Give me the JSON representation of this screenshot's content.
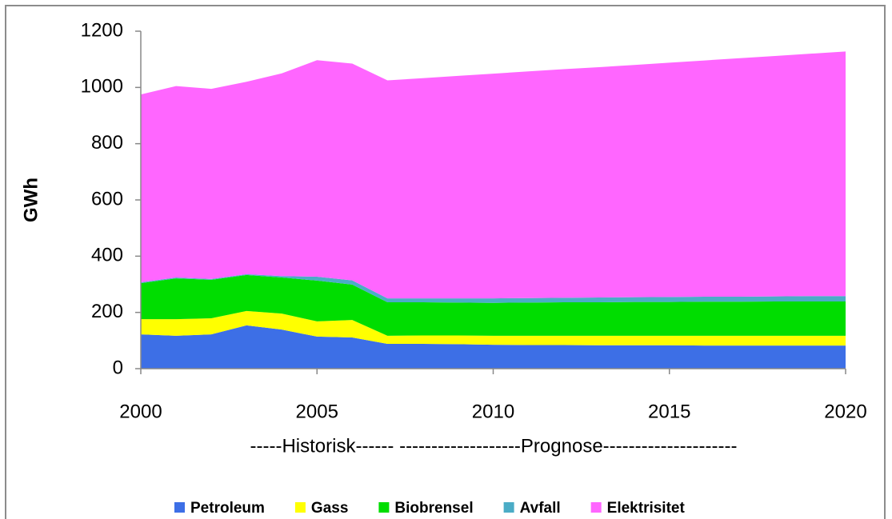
{
  "chart_data": {
    "type": "stacked-area",
    "y_label": "GWh",
    "annotation": "-----Historisk------ -------------------Prognose---------------------",
    "x": [
      2000,
      2001,
      2002,
      2003,
      2004,
      2005,
      2006,
      2007,
      2008,
      2009,
      2010,
      2011,
      2012,
      2013,
      2014,
      2015,
      2016,
      2017,
      2018,
      2019,
      2020
    ],
    "xlim": [
      2000,
      2020
    ],
    "xticks": [
      2000,
      2005,
      2010,
      2015,
      2020
    ],
    "ylim": [
      0,
      1200
    ],
    "yticks": [
      0,
      200,
      400,
      600,
      800,
      1000,
      1200
    ],
    "legend": "bottom",
    "series": [
      {
        "name": "Petroleum",
        "color": "#3d6fe6",
        "values": [
          122,
          117,
          122,
          154,
          139,
          114,
          111,
          88,
          88,
          87,
          85,
          84,
          84,
          83,
          83,
          83,
          82,
          82,
          82,
          82,
          82
        ]
      },
      {
        "name": "Gass",
        "color": "#ffff00",
        "values": [
          54,
          59,
          57,
          51,
          57,
          54,
          62,
          29,
          30,
          31,
          32,
          33,
          33,
          34,
          34,
          34,
          35,
          35,
          35,
          35,
          35
        ]
      },
      {
        "name": "Biobrensel",
        "color": "#00dd00",
        "values": [
          128,
          145,
          137,
          128,
          128,
          145,
          126,
          119,
          118,
          117,
          117,
          118,
          119,
          119,
          120,
          120,
          121,
          121,
          122,
          122,
          122
        ]
      },
      {
        "name": "Avfall",
        "color": "#4bacc6",
        "values": [
          3,
          3,
          3,
          3,
          5,
          14,
          15,
          14,
          14,
          15,
          16,
          16,
          16,
          17,
          17,
          18,
          18,
          18,
          18,
          19,
          19
        ]
      },
      {
        "name": "Elektrisitet",
        "color": "#ff66ff",
        "values": [
          668,
          681,
          676,
          684,
          721,
          770,
          771,
          775,
          783,
          791,
          799,
          806,
          813,
          819,
          826,
          833,
          840,
          848,
          855,
          862,
          870
        ]
      }
    ]
  }
}
